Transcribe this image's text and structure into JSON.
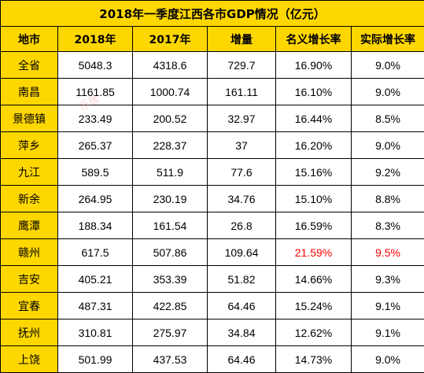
{
  "title": "2018年一季度江西各市GDP情况（亿元）",
  "headers": [
    "地市",
    "2018年",
    "2017年",
    "增量",
    "名义增长率",
    "实际增长率"
  ],
  "highlight_color": "#ff0000",
  "header_bg": "#ffd700",
  "rows": [
    [
      "全省",
      "5048.3",
      "4318.6",
      "729.7",
      "16.90%",
      "9.0%"
    ],
    [
      "南昌",
      "1161.85",
      "1000.74",
      "161.11",
      "16.10%",
      "9.0%"
    ],
    [
      "景德镇",
      "233.49",
      "200.52",
      "32.97",
      "16.44%",
      "8.5%"
    ],
    [
      "萍乡",
      "265.37",
      "228.37",
      "37",
      "16.20%",
      "9.0%"
    ],
    [
      "九江",
      "589.5",
      "511.9",
      "77.6",
      "15.16%",
      "9.2%"
    ],
    [
      "新余",
      "264.95",
      "230.19",
      "34.76",
      "15.10%",
      "8.8%"
    ],
    [
      "鹰潭",
      "188.34",
      "161.54",
      "26.8",
      "16.59%",
      "8.3%"
    ],
    [
      "赣州",
      "617.5",
      "507.86",
      "109.64",
      "21.59%",
      "9.5%"
    ],
    [
      "吉安",
      "405.21",
      "353.39",
      "51.82",
      "14.66%",
      "9.3%"
    ],
    [
      "宜春",
      "487.31",
      "422.85",
      "64.46",
      "15.24%",
      "9.1%"
    ],
    [
      "抚州",
      "310.81",
      "275.97",
      "34.84",
      "12.62%",
      "9.1%"
    ],
    [
      "上饶",
      "501.99",
      "437.53",
      "64.46",
      "14.73%",
      "9.0%"
    ]
  ],
  "watermark": "乐居"
}
